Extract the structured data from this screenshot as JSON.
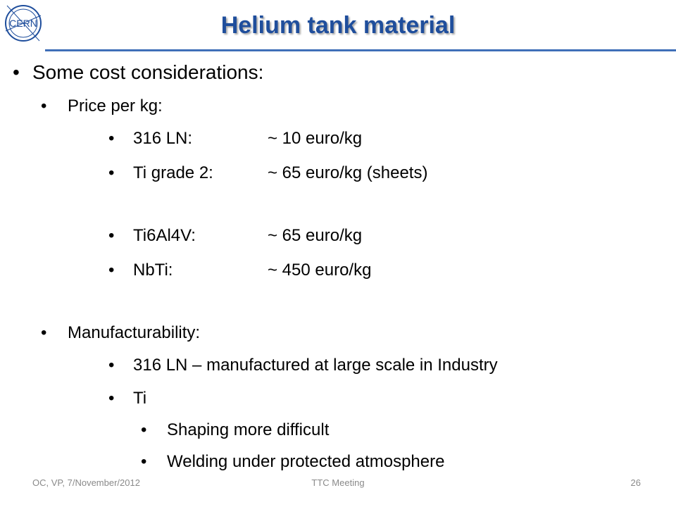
{
  "logo": {
    "text": "CERN",
    "icon": "cern-logo"
  },
  "title": "Helium tank material",
  "items": [
    {
      "text": "Some cost considerations:"
    },
    {
      "text": "Price per kg:"
    },
    {
      "label": "316 LN:",
      "value": "~ 10 euro/kg"
    },
    {
      "label": "Ti grade 2:",
      "value": "~ 65 euro/kg (sheets)"
    },
    {
      "label": "Ti6Al4V:",
      "value": "~ 65 euro/kg"
    },
    {
      "label": "NbTi:",
      "value": "~ 450 euro/kg"
    },
    {
      "text": "Manufacturability:"
    },
    {
      "text": "316 LN – manufactured at large scale in Industry"
    },
    {
      "text": "Ti"
    },
    {
      "text": "Shaping more difficult"
    },
    {
      "text": "Welding under protected atmosphere"
    }
  ],
  "footer": {
    "left": "OC, VP, 7/November/2012",
    "center": "TTC Meeting",
    "page": "26"
  },
  "colors": {
    "title": "#1f4e9c",
    "rule": "#3f6fb8",
    "footer": "#8a8a8a"
  }
}
